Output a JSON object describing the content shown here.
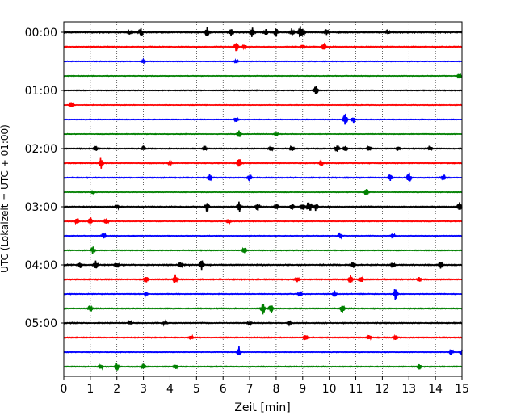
{
  "chart_data": {
    "type": "line",
    "subtype": "seismogram-helicorder",
    "xlabel": "Zeit  [min]",
    "ylabel": "UTC (Lokalzeit = UTC + 01:00)",
    "xlim": [
      0,
      15
    ],
    "x_ticks": [
      "0",
      "1",
      "2",
      "3",
      "4",
      "5",
      "6",
      "7",
      "8",
      "9",
      "10",
      "11",
      "12",
      "13",
      "14",
      "15"
    ],
    "y_ticks": [
      "00:00",
      "01:00",
      "02:00",
      "03:00",
      "04:00",
      "05:00"
    ],
    "grid": "vertical-dotted",
    "trace_count": 24,
    "trace_interval_minutes": 15,
    "trace_colors": [
      "#000000",
      "#ff0000",
      "#0000ff",
      "#008000"
    ],
    "traces": [
      {
        "noise": 0.55,
        "events": [
          [
            2.5,
            3
          ],
          [
            2.9,
            5
          ],
          [
            5.4,
            6
          ],
          [
            6.3,
            4
          ],
          [
            7.1,
            6
          ],
          [
            7.6,
            4
          ],
          [
            8.0,
            5
          ],
          [
            8.6,
            5
          ],
          [
            8.9,
            7
          ],
          [
            9.0,
            6
          ],
          [
            9.9,
            4
          ],
          [
            12.2,
            3
          ]
        ]
      },
      {
        "noise": 0.4,
        "events": [
          [
            6.5,
            6
          ],
          [
            6.8,
            3
          ],
          [
            9.0,
            3
          ],
          [
            9.8,
            6
          ]
        ]
      },
      {
        "noise": 0.3,
        "events": [
          [
            3.0,
            2
          ],
          [
            6.5,
            2
          ]
        ]
      },
      {
        "noise": 0.3,
        "events": [
          [
            14.9,
            3
          ]
        ]
      },
      {
        "noise": 0.35,
        "events": [
          [
            9.5,
            8
          ]
        ]
      },
      {
        "noise": 0.3,
        "events": [
          [
            0.3,
            5
          ]
        ]
      },
      {
        "noise": 0.3,
        "events": [
          [
            6.5,
            3
          ],
          [
            10.6,
            8
          ],
          [
            10.9,
            4
          ]
        ]
      },
      {
        "noise": 0.3,
        "events": [
          [
            6.6,
            5
          ],
          [
            8.0,
            2
          ]
        ]
      },
      {
        "noise": 0.4,
        "events": [
          [
            1.2,
            3
          ],
          [
            3.0,
            3
          ],
          [
            5.3,
            3
          ],
          [
            7.8,
            3
          ],
          [
            8.6,
            4
          ],
          [
            10.3,
            6
          ],
          [
            10.6,
            4
          ],
          [
            11.5,
            3
          ],
          [
            12.6,
            3
          ],
          [
            13.8,
            3
          ]
        ]
      },
      {
        "noise": 0.4,
        "events": [
          [
            1.4,
            7
          ],
          [
            4.0,
            2
          ],
          [
            6.6,
            8
          ],
          [
            9.7,
            3
          ]
        ]
      },
      {
        "noise": 0.4,
        "events": [
          [
            5.5,
            4
          ],
          [
            7.0,
            4
          ],
          [
            12.3,
            4
          ],
          [
            13.0,
            7
          ],
          [
            14.3,
            4
          ]
        ]
      },
      {
        "noise": 0.3,
        "events": [
          [
            1.1,
            2
          ],
          [
            11.4,
            5
          ]
        ]
      },
      {
        "noise": 0.45,
        "events": [
          [
            2.0,
            3
          ],
          [
            5.4,
            7
          ],
          [
            6.6,
            8
          ],
          [
            7.3,
            6
          ],
          [
            8.0,
            4
          ],
          [
            8.6,
            4
          ],
          [
            9.0,
            4
          ],
          [
            9.2,
            5
          ],
          [
            9.3,
            4
          ],
          [
            9.5,
            5
          ],
          [
            14.9,
            6
          ]
        ]
      },
      {
        "noise": 0.35,
        "events": [
          [
            0.5,
            4
          ],
          [
            1.0,
            5
          ],
          [
            1.6,
            5
          ],
          [
            6.2,
            3
          ]
        ]
      },
      {
        "noise": 0.3,
        "events": [
          [
            1.5,
            4
          ],
          [
            10.4,
            4
          ],
          [
            12.4,
            3
          ]
        ]
      },
      {
        "noise": 0.35,
        "events": [
          [
            1.1,
            5
          ],
          [
            6.8,
            4
          ]
        ]
      },
      {
        "noise": 0.5,
        "events": [
          [
            0.6,
            4
          ],
          [
            1.2,
            5
          ],
          [
            2.0,
            3
          ],
          [
            4.4,
            4
          ],
          [
            5.2,
            6
          ],
          [
            10.9,
            4
          ],
          [
            12.4,
            3
          ],
          [
            14.2,
            4
          ]
        ]
      },
      {
        "noise": 0.45,
        "events": [
          [
            3.1,
            5
          ],
          [
            4.2,
            6
          ],
          [
            8.8,
            3
          ],
          [
            10.8,
            6
          ],
          [
            11.2,
            5
          ],
          [
            13.4,
            3
          ]
        ]
      },
      {
        "noise": 0.35,
        "events": [
          [
            3.1,
            2
          ],
          [
            8.9,
            4
          ],
          [
            10.2,
            4
          ],
          [
            12.5,
            9
          ]
        ]
      },
      {
        "noise": 0.4,
        "events": [
          [
            1.0,
            5
          ],
          [
            7.5,
            8
          ],
          [
            7.8,
            6
          ],
          [
            10.5,
            6
          ]
        ]
      },
      {
        "noise": 0.45,
        "events": [
          [
            2.5,
            2
          ],
          [
            3.8,
            2
          ],
          [
            7.0,
            2
          ],
          [
            8.5,
            2
          ]
        ]
      },
      {
        "noise": 0.4,
        "events": [
          [
            4.8,
            3
          ],
          [
            9.1,
            5
          ],
          [
            11.5,
            3
          ],
          [
            12.5,
            3
          ]
        ]
      },
      {
        "noise": 0.35,
        "events": [
          [
            6.6,
            7
          ],
          [
            14.6,
            4
          ],
          [
            15.0,
            4
          ]
        ]
      },
      {
        "noise": 0.4,
        "events": [
          [
            1.4,
            3
          ],
          [
            2.0,
            5
          ],
          [
            3.0,
            3
          ],
          [
            4.2,
            3
          ],
          [
            13.4,
            3
          ]
        ]
      }
    ]
  }
}
